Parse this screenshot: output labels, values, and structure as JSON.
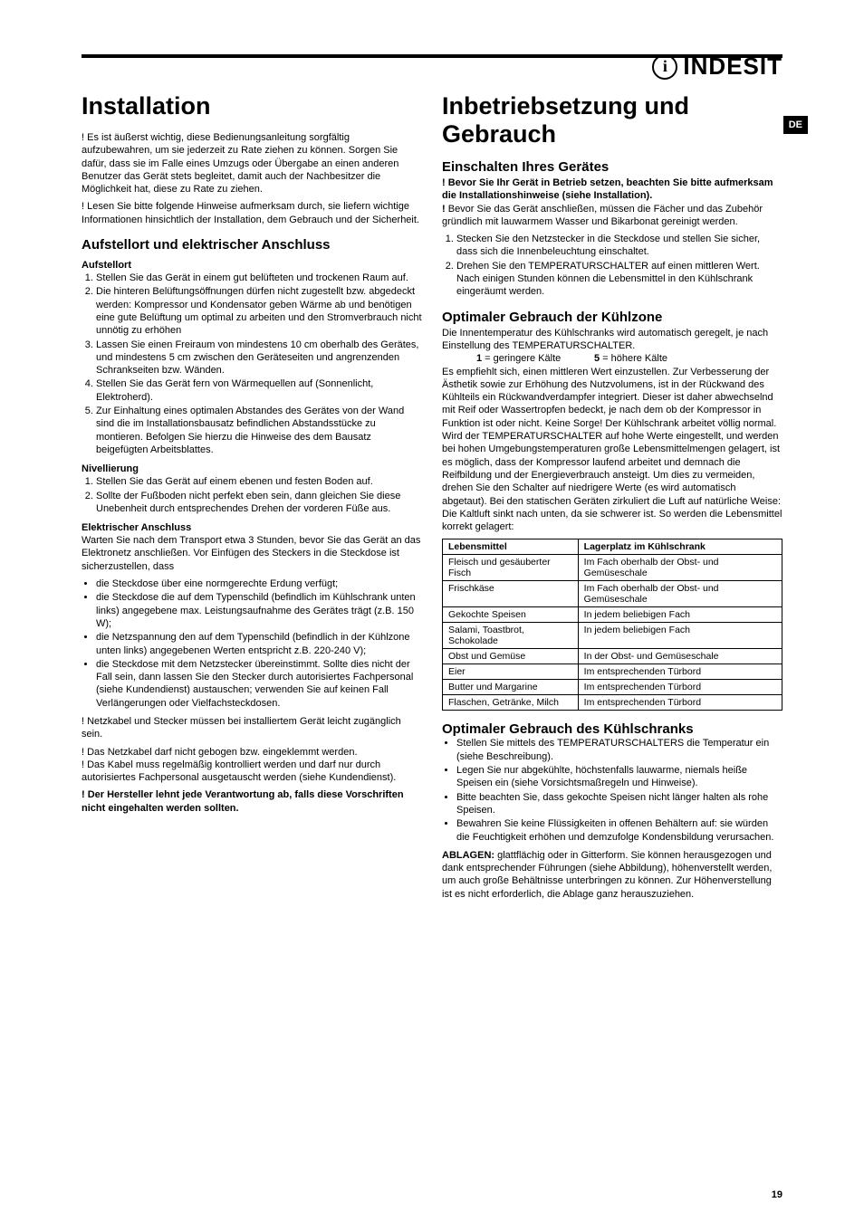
{
  "brand": {
    "icon": "i",
    "name": "INDESIT"
  },
  "lang": "DE",
  "pageNumber": "19",
  "left": {
    "title": "Installation",
    "intro1": "! Es ist äußerst wichtig, diese Bedienungsanleitung sorgfältig aufzubewahren, um sie jederzeit zu Rate ziehen zu können. Sorgen Sie dafür, dass sie im Falle eines Umzugs oder Übergabe an einen anderen Benutzer das Gerät stets begleitet, damit auch der Nachbesitzer die Möglichkeit hat, diese zu Rate zu ziehen.",
    "intro2": "! Lesen Sie bitte folgende Hinweise aufmerksam durch, sie liefern wichtige Informationen hinsichtlich der Installation, dem Gebrauch und der Sicherheit.",
    "h2a": "Aufstellort und elektrischer Anschluss",
    "sub1": "Aufstellort",
    "ol1": [
      "Stellen Sie das Gerät in einem gut belüfteten und trockenen Raum auf.",
      "Die hinteren Belüftungsöffnungen dürfen nicht zugestellt bzw. abgedeckt werden: Kompressor und Kondensator geben Wärme ab und benötigen eine gute Belüftung um optimal zu arbeiten und den Stromverbrauch nicht unnötig zu erhöhen",
      "Lassen Sie einen Freiraum von mindestens 10 cm oberhalb des Gerätes, und mindestens 5 cm zwischen den Geräteseiten und angrenzenden Schrankseiten bzw. Wänden.",
      "Stellen Sie das Gerät fern von Wärmequellen auf (Sonnenlicht, Elektroherd).",
      "Zur Einhaltung eines optimalen Abstandes des Gerätes von der Wand sind die im Installationsbausatz befindlichen Abstandsstücke zu montieren. Befolgen Sie hierzu die Hinweise des dem Bausatz beigefügten Arbeitsblattes."
    ],
    "sub2": "Nivellierung",
    "ol2": [
      "Stellen Sie das Gerät auf einem ebenen und festen Boden auf.",
      "Sollte der Fußboden nicht perfekt eben sein, dann gleichen Sie diese Unebenheit durch entsprechendes Drehen der vorderen Füße aus."
    ],
    "sub3": "Elektrischer Anschluss",
    "p3": "Warten Sie nach dem Transport etwa 3 Stunden, bevor Sie das Gerät an das Elektronetz anschließen. Vor Einfügen des Steckers in die Steckdose ist sicherzustellen, dass",
    "ul3": [
      "die Steckdose über eine normgerechte Erdung verfügt;",
      "die Steckdose die auf dem Typenschild (befindlich im Kühlschrank unten links) angegebene max. Leistungsaufnahme des Gerätes trägt (z.B. 150 W);",
      "die Netzspannung den auf dem Typenschild (befindlich in der Kühlzone unten links) angegebenen Werten entspricht z.B. 220-240 V);",
      "die Steckdose mit dem Netzstecker übereinstimmt. Sollte dies nicht der Fall sein, dann lassen Sie den Stecker durch autorisiertes Fachpersonal (siehe Kundendienst) austauschen; verwenden Sie auf keinen Fall Verlängerungen oder Vielfachsteckdosen."
    ],
    "warn1": "! Netzkabel und Stecker müssen bei installiertem Gerät leicht zugänglich sein.",
    "warn2": "! Das Netzkabel darf nicht gebogen bzw. eingeklemmt werden.",
    "warn3": "! Das Kabel muss regelmäßig kontrolliert werden und darf nur durch autorisiertes Fachpersonal ausgetauscht werden (siehe Kundendienst).",
    "warn4": "! Der Hersteller lehnt jede Verantwortung ab, falls diese Vorschriften nicht eingehalten werden sollten."
  },
  "right": {
    "title": "Inbetriebsetzung und Gebrauch",
    "h2a": "Einschalten Ihres Gerätes",
    "p1": "! Bevor Sie Ihr Gerät in Betrieb setzen, beachten Sie bitte aufmerksam die Installationshinweise (siehe Installation).",
    "p2a": "!",
    "p2b": " Bevor Sie das Gerät anschließen, müssen die Fächer und das Zubehör gründlich mit lauwarmem Wasser und Bikarbonat gereinigt werden.",
    "ol1": [
      "Stecken Sie den Netzstecker in die Steckdose und stellen Sie sicher, dass sich die Innenbeleuchtung einschaltet.",
      "Drehen Sie den TEMPERATURSCHALTER auf einen mittleren Wert. Nach einigen Stunden können die Lebensmittel in den Kühlschrank eingeräumt werden."
    ],
    "h2b": "Optimaler Gebrauch der Kühlzone",
    "p3": "Die Innentemperatur des Kühlschranks wird automatisch geregelt, je nach Einstellung des TEMPERATURSCHALTER.",
    "scale1a": "1",
    "scale1b": " = geringere Kälte",
    "scale2a": "5",
    "scale2b": " = höhere Kälte",
    "p4": "Es empfiehlt sich, einen mittleren Wert einzustellen. Zur Verbesserung der Ästhetik sowie zur Erhöhung des Nutzvolumens, ist in der Rückwand des Kühlteils ein Rückwandverdampfer integriert. Dieser ist daher abwechselnd mit Reif oder Wassertropfen bedeckt, je nach dem ob der Kompressor in Funktion ist oder nicht. Keine Sorge! Der Kühlschrank arbeitet völlig normal.",
    "p5": "Wird der TEMPERATURSCHALTER auf hohe Werte eingestellt, und werden bei hohen Umgebungstemperaturen große Lebensmittelmengen gelagert, ist es möglich, dass der Kompressor laufend arbeitet und demnach die Reifbildung und der Energieverbrauch ansteigt. Um dies zu vermeiden, drehen Sie den Schalter auf niedrigere Werte (es wird automatisch abgetaut). Bei den statischen Geräten zirkuliert die Luft auf natürliche Weise: Die Kaltluft sinkt nach unten, da sie schwerer ist. So werden die Lebensmittel korrekt gelagert:",
    "table": {
      "headers": [
        "Lebensmittel",
        "Lagerplatz im Kühlschrank"
      ],
      "rows": [
        [
          "Fleisch und gesäuberter Fisch",
          "Im Fach oberhalb der Obst- und Gemüseschale"
        ],
        [
          "Frischkäse",
          "Im Fach oberhalb der Obst- und Gemüseschale"
        ],
        [
          "Gekochte Speisen",
          "In jedem beliebigen Fach"
        ],
        [
          "Salami, Toastbrot, Schokolade",
          "In jedem beliebigen Fach"
        ],
        [
          "Obst und Gemüse",
          "In der Obst- und Gemüseschale"
        ],
        [
          "Eier",
          "Im entsprechenden Türbord"
        ],
        [
          "Butter und Margarine",
          "Im entsprechenden Türbord"
        ],
        [
          "Flaschen, Getränke, Milch",
          "Im entsprechenden Türbord"
        ]
      ]
    },
    "h2c": "Optimaler Gebrauch des Kühlschranks",
    "ul2": [
      "Stellen Sie mittels des TEMPERATURSCHALTERS die Temperatur ein (siehe Beschreibung).",
      "Legen Sie nur abgekühlte, höchstenfalls lauwarme, niemals heiße Speisen ein (siehe Vorsichtsmaßregeln und Hinweise).",
      "Bitte beachten Sie, dass gekochte Speisen nicht länger halten als rohe Speisen.",
      "Bewahren Sie keine Flüssigkeiten in offenen Behältern auf: sie würden die Feuchtigkeit erhöhen und demzufolge Kondensbildung verursachen."
    ],
    "p6a": "ABLAGEN:",
    "p6b": " glattflächig oder in Gitterform.  Sie können herausgezogen und dank entsprechender Führungen (siehe Abbildung), höhenverstellt werden, um auch große Behältnisse unterbringen zu können. Zur Höhenverstellung ist es nicht erforderlich, die Ablage ganz herauszuziehen."
  }
}
